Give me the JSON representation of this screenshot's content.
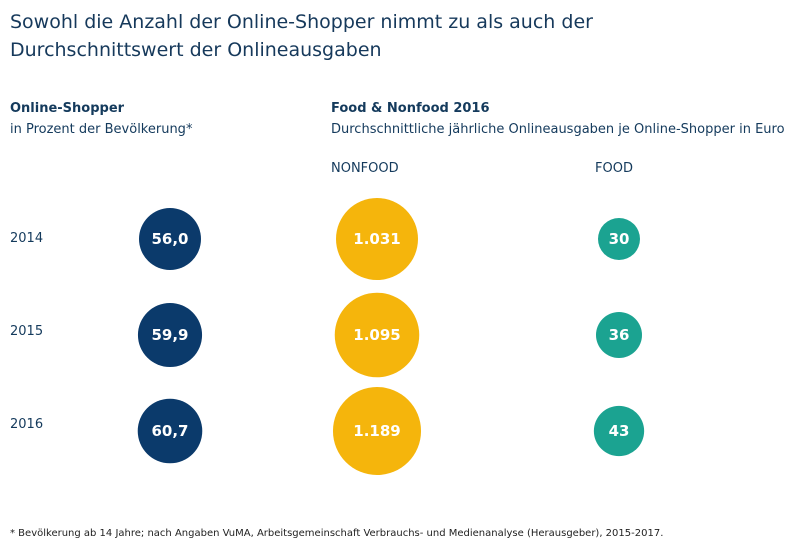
{
  "title": "Sowohl die Anzahl der Online-Shopper nimmt zu als auch der Durchschnittswert der Onlineausgaben",
  "left_panel": {
    "title": "Online-Shopper",
    "subtitle": "in Prozent der Bevölkerung*"
  },
  "right_panel": {
    "title": "Food & Nonfood 2016",
    "subtitle": "Durchschnittliche jährliche Onlineausgaben je Online-Shopper in Euro",
    "col_nonfood": "NONFOOD",
    "col_food": "FOOD"
  },
  "footnote": "* Bevölkerung ab 14 Jahre; nach Angaben VuMA, Arbeitsgemeinschaft Verbrauchs- und Medienanalyse (Herausgeber), 2015-2017.",
  "colors": {
    "shopper": "#0b3a6b",
    "nonfood": "#f5b50c",
    "food": "#1ba391"
  },
  "chart_data": {
    "type": "bubble",
    "categories": [
      "2014",
      "2015",
      "2016"
    ],
    "series": [
      {
        "name": "Online-Shopper",
        "values": [
          56.0,
          59.9,
          60.7
        ],
        "labels": [
          "56,0",
          "59,9",
          "60,7"
        ]
      },
      {
        "name": "NONFOOD",
        "values": [
          1031,
          1095,
          1189
        ],
        "labels": [
          "1.031",
          "1.095",
          "1.189"
        ]
      },
      {
        "name": "FOOD",
        "values": [
          30,
          36,
          43
        ],
        "labels": [
          "30",
          "36",
          "43"
        ]
      }
    ]
  }
}
